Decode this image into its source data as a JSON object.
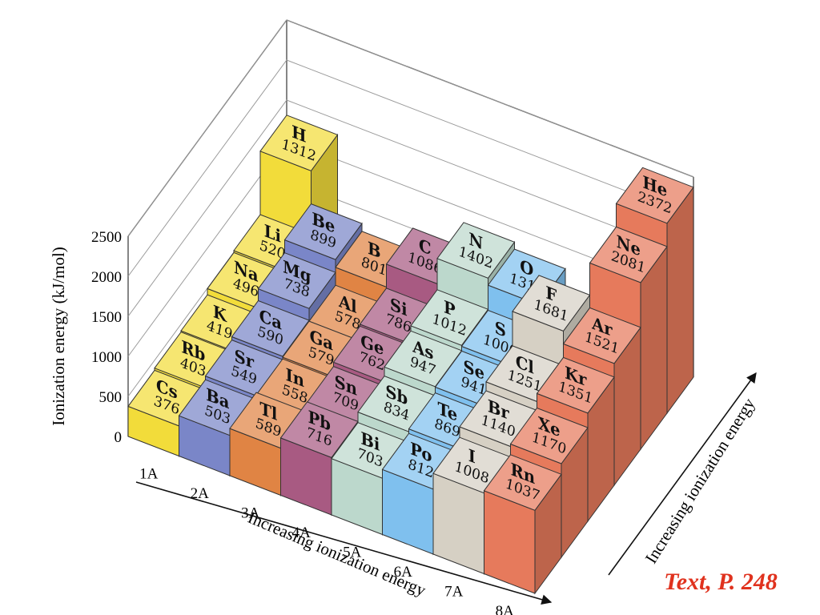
{
  "chart_data": {
    "type": "bar",
    "title": "",
    "ylabel": "Ionization energy (kJ/mol)",
    "ylim": [
      0,
      2500
    ],
    "yticks": [
      0,
      500,
      1000,
      1500,
      2000,
      2500
    ],
    "x_axis_label": "Increasing ionization energy",
    "depth_axis_label": "Increasing ionization energy",
    "groups": [
      {
        "label": "1A",
        "color": "#f2dc3a",
        "elements": [
          {
            "symbol": "H",
            "value": 1312
          },
          {
            "symbol": "Li",
            "value": 520
          },
          {
            "symbol": "Na",
            "value": 496
          },
          {
            "symbol": "K",
            "value": 419
          },
          {
            "symbol": "Rb",
            "value": 403
          },
          {
            "symbol": "Cs",
            "value": 376
          }
        ]
      },
      {
        "label": "2A",
        "color": "#7a86c8",
        "elements": [
          {
            "symbol": "Be",
            "value": 899
          },
          {
            "symbol": "Mg",
            "value": 738
          },
          {
            "symbol": "Ca",
            "value": 590
          },
          {
            "symbol": "Sr",
            "value": 549
          },
          {
            "symbol": "Ba",
            "value": 503
          }
        ]
      },
      {
        "label": "3A",
        "color": "#e08444",
        "elements": [
          {
            "symbol": "B",
            "value": 801
          },
          {
            "symbol": "Al",
            "value": 578
          },
          {
            "symbol": "Ga",
            "value": 579
          },
          {
            "symbol": "In",
            "value": 558
          },
          {
            "symbol": "Tl",
            "value": 589
          }
        ]
      },
      {
        "label": "4A",
        "color": "#a85a82",
        "elements": [
          {
            "symbol": "C",
            "value": 1086
          },
          {
            "symbol": "Si",
            "value": 786
          },
          {
            "symbol": "Ge",
            "value": 762
          },
          {
            "symbol": "Sn",
            "value": 709
          },
          {
            "symbol": "Pb",
            "value": 716
          }
        ]
      },
      {
        "label": "5A",
        "color": "#bcd8cc",
        "elements": [
          {
            "symbol": "N",
            "value": 1402
          },
          {
            "symbol": "P",
            "value": 1012
          },
          {
            "symbol": "As",
            "value": 947
          },
          {
            "symbol": "Sb",
            "value": 834
          },
          {
            "symbol": "Bi",
            "value": 703
          }
        ]
      },
      {
        "label": "6A",
        "color": "#7fc0ee",
        "elements": [
          {
            "symbol": "O",
            "value": 1314
          },
          {
            "symbol": "S",
            "value": 1000
          },
          {
            "symbol": "Se",
            "value": 941
          },
          {
            "symbol": "Te",
            "value": 869
          },
          {
            "symbol": "Po",
            "value": 812
          }
        ]
      },
      {
        "label": "7A",
        "color": "#d6d0c4",
        "elements": [
          {
            "symbol": "F",
            "value": 1681
          },
          {
            "symbol": "Cl",
            "value": 1251
          },
          {
            "symbol": "Br",
            "value": 1140
          },
          {
            "symbol": "I",
            "value": 1008
          }
        ]
      },
      {
        "label": "8A",
        "color": "#e67a5c",
        "elements": [
          {
            "symbol": "He",
            "value": 2372
          },
          {
            "symbol": "Ne",
            "value": 2081
          },
          {
            "symbol": "Ar",
            "value": 1521
          },
          {
            "symbol": "Kr",
            "value": 1351
          },
          {
            "symbol": "Xe",
            "value": 1170
          },
          {
            "symbol": "Rn",
            "value": 1037
          }
        ]
      }
    ]
  },
  "source_note": "Text, P. 248"
}
